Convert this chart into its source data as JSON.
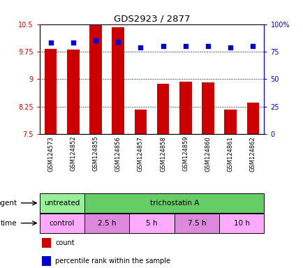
{
  "title": "GDS2923 / 2877",
  "samples": [
    "GSM124573",
    "GSM124852",
    "GSM124855",
    "GSM124856",
    "GSM124857",
    "GSM124858",
    "GSM124859",
    "GSM124860",
    "GSM124861",
    "GSM124862"
  ],
  "bar_values": [
    9.82,
    9.81,
    10.47,
    10.42,
    8.17,
    8.88,
    8.92,
    8.91,
    8.17,
    8.35
  ],
  "bar_bottom": 7.5,
  "dot_values": [
    83,
    83,
    85,
    84,
    79,
    80,
    80,
    80,
    79,
    80
  ],
  "bar_color": "#cc0000",
  "dot_color": "#0000cc",
  "ylim_left": [
    7.5,
    10.5
  ],
  "ylim_right": [
    0,
    100
  ],
  "yticks_left": [
    7.5,
    8.25,
    9.0,
    9.75,
    10.5
  ],
  "yticks_right": [
    0,
    25,
    50,
    75,
    100
  ],
  "ytick_labels_left": [
    "7.5",
    "8.25",
    "9",
    "9.75",
    "10.5"
  ],
  "ytick_labels_right": [
    "0",
    "25",
    "50",
    "75",
    "100%"
  ],
  "agent_labels": [
    {
      "text": "untreated",
      "start": 0,
      "end": 2,
      "color": "#99ee99"
    },
    {
      "text": "trichostatin A",
      "start": 2,
      "end": 10,
      "color": "#66cc66"
    }
  ],
  "time_labels": [
    {
      "text": "control",
      "start": 0,
      "end": 2,
      "color": "#ffaaff"
    },
    {
      "text": "2.5 h",
      "start": 2,
      "end": 4,
      "color": "#dd88dd"
    },
    {
      "text": "5 h",
      "start": 4,
      "end": 6,
      "color": "#ffaaff"
    },
    {
      "text": "7.5 h",
      "start": 6,
      "end": 8,
      "color": "#dd88dd"
    },
    {
      "text": "10 h",
      "start": 8,
      "end": 10,
      "color": "#ffaaff"
    }
  ],
  "legend_items": [
    {
      "color": "#cc0000",
      "label": "count"
    },
    {
      "color": "#0000cc",
      "label": "percentile rank within the sample"
    }
  ],
  "agent_row_label": "agent",
  "time_row_label": "time",
  "background_color": "#ffffff"
}
